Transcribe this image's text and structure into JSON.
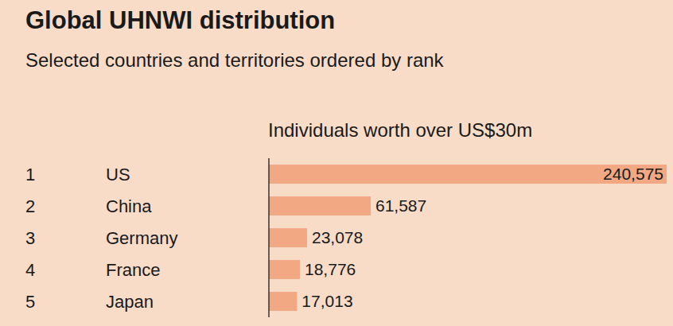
{
  "chart_data": {
    "type": "bar",
    "orientation": "horizontal",
    "title": "Global UHNWI distribution",
    "subtitle": "Selected countries and territories ordered by rank",
    "x_label": "Individuals worth over US$30m",
    "ranks": [
      1,
      2,
      3,
      4,
      5
    ],
    "categories": [
      "US",
      "China",
      "Germany",
      "France",
      "Japan"
    ],
    "values": [
      240575,
      61587,
      23078,
      18776,
      17013
    ],
    "value_labels": [
      "240,575",
      "61,587",
      "23,078",
      "18,776",
      "17,013"
    ],
    "color": "#f2a882",
    "xlim": [
      0,
      240575
    ],
    "xticks": [],
    "data_labels": true,
    "tick_labels": "y",
    "grid": false
  }
}
